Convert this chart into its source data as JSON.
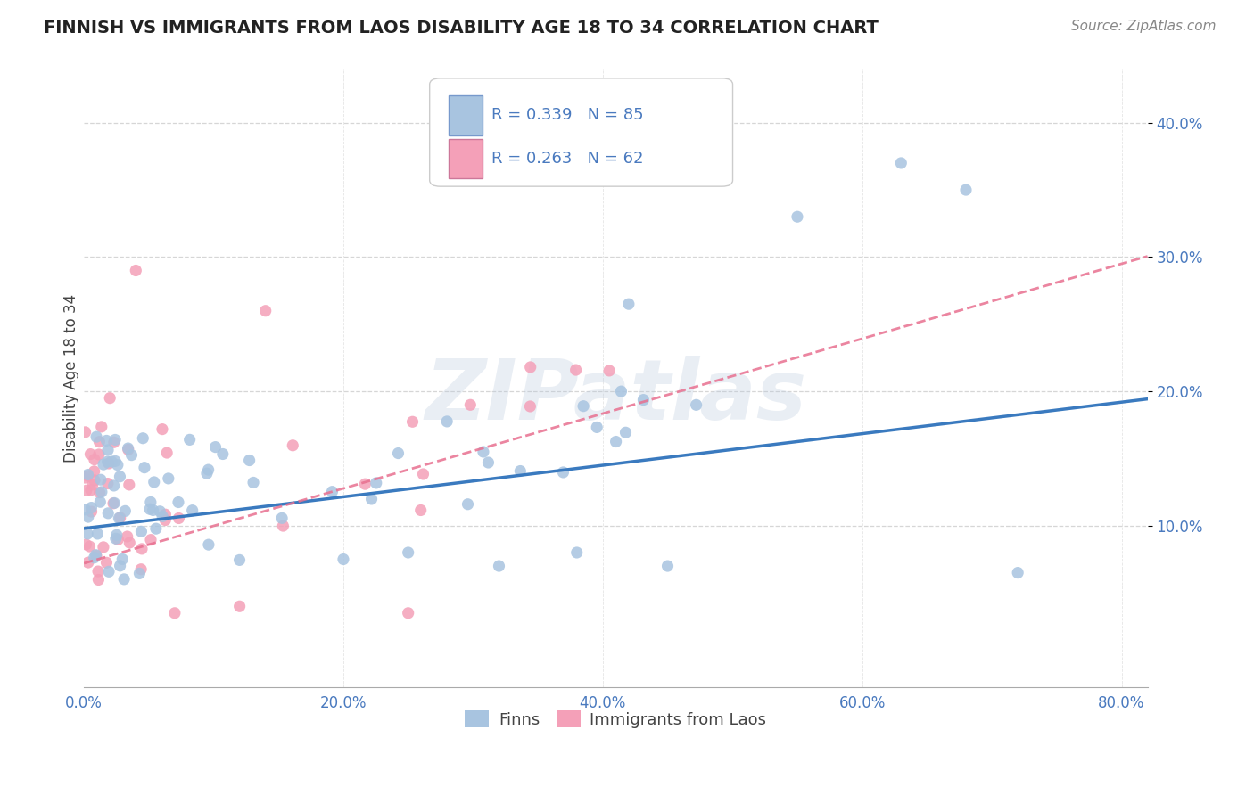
{
  "title": "FINNISH VS IMMIGRANTS FROM LAOS DISABILITY AGE 18 TO 34 CORRELATION CHART",
  "source": "Source: ZipAtlas.com",
  "ylabel": "Disability Age 18 to 34",
  "xlim": [
    0.0,
    0.82
  ],
  "ylim": [
    -0.02,
    0.44
  ],
  "xtick_labels": [
    "0.0%",
    "20.0%",
    "40.0%",
    "60.0%",
    "80.0%"
  ],
  "xtick_vals": [
    0.0,
    0.2,
    0.4,
    0.6,
    0.8
  ],
  "ytick_labels": [
    "10.0%",
    "20.0%",
    "30.0%",
    "40.0%"
  ],
  "ytick_vals": [
    0.1,
    0.2,
    0.3,
    0.4
  ],
  "finns_R": 0.339,
  "finns_N": 85,
  "laos_R": 0.263,
  "laos_N": 62,
  "finns_color": "#a8c4e0",
  "laos_color": "#f4a0b8",
  "finns_line_color": "#3a7abf",
  "laos_line_color": "#e87090",
  "background_color": "#ffffff",
  "grid_color": "#cccccc",
  "watermark": "ZIPatlas",
  "tick_label_color": "#4a7abf"
}
